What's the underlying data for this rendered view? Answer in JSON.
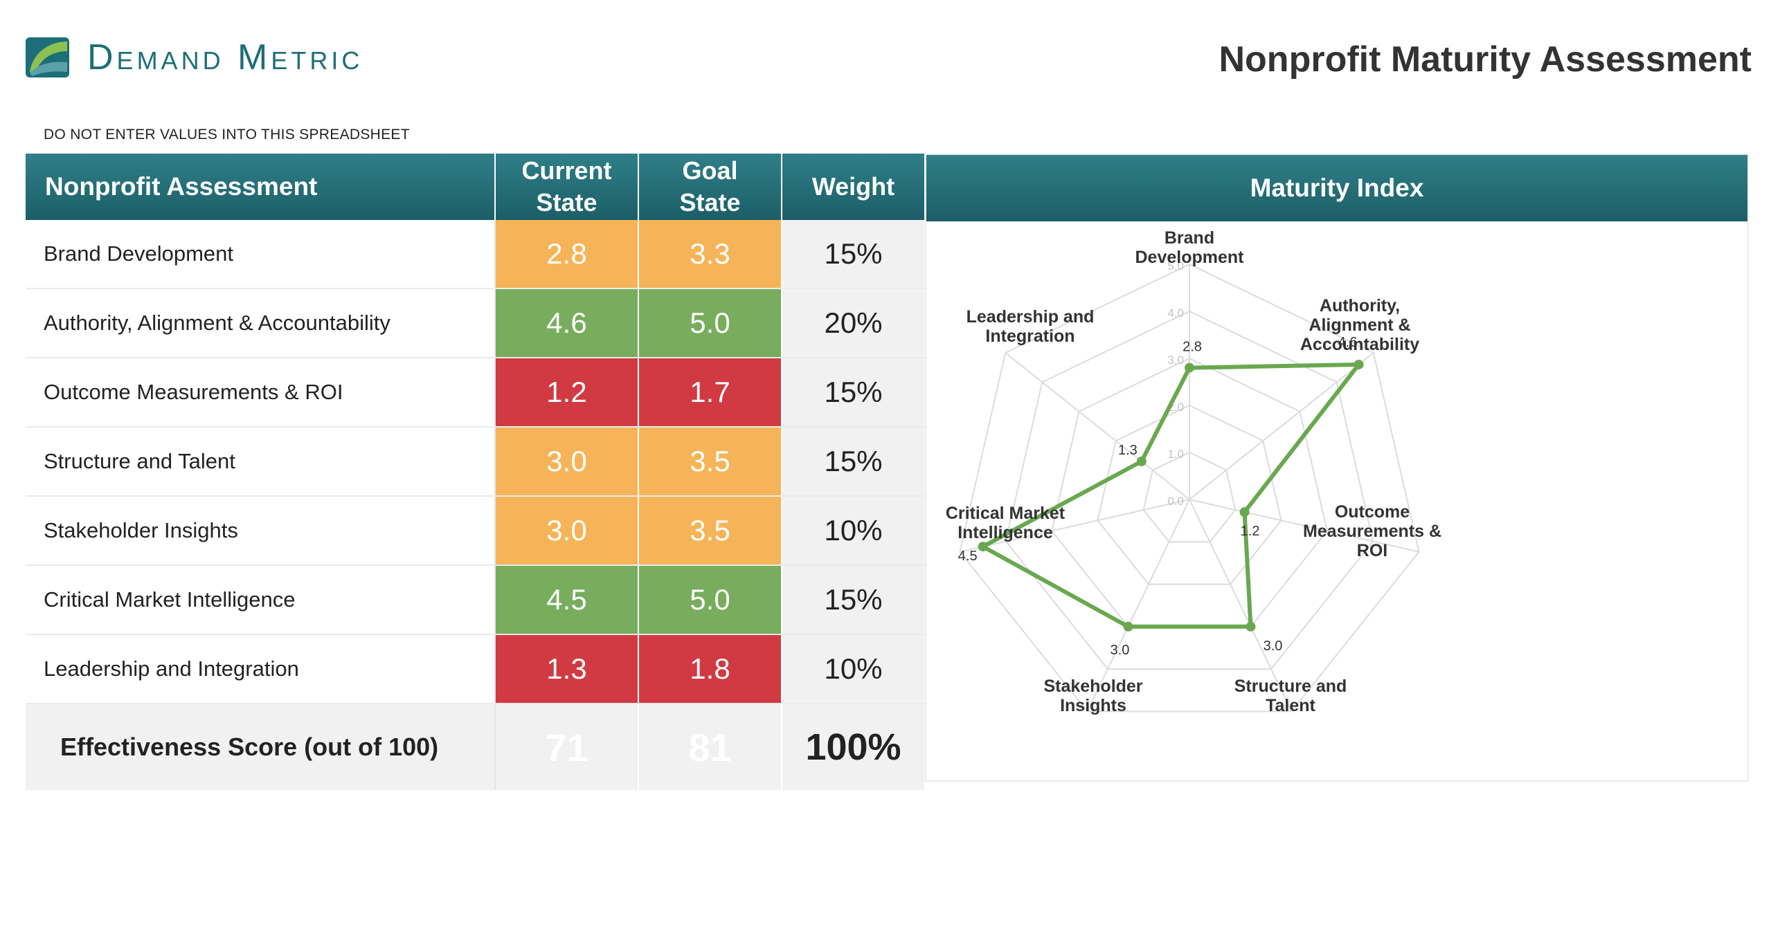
{
  "brand": {
    "name": "Demand Metric",
    "colors": {
      "teal": "#1d6e78",
      "green": "#5a9a3c"
    }
  },
  "title": "Nonprofit Maturity Assessment",
  "notice": "DO NOT ENTER VALUES INTO THIS SPREADSHEET",
  "table": {
    "headers": {
      "name": "Nonprofit Assessment",
      "current_line1": "Current",
      "current_line2": "State",
      "goal_line1": "Goal",
      "goal_line2": "State",
      "weight": "Weight"
    },
    "rows": [
      {
        "name": "Brand Development",
        "current": "2.8",
        "goal": "3.3",
        "weight": "15%",
        "current_color": "#f6b458",
        "goal_color": "#f6b458"
      },
      {
        "name": "Authority, Alignment & Accountability",
        "current": "4.6",
        "goal": "5.0",
        "weight": "20%",
        "current_color": "#77ad5c",
        "goal_color": "#77ad5c"
      },
      {
        "name": "Outcome Measurements & ROI",
        "current": "1.2",
        "goal": "1.7",
        "weight": "15%",
        "current_color": "#d13a43",
        "goal_color": "#d13a43"
      },
      {
        "name": "Structure and Talent",
        "current": "3.0",
        "goal": "3.5",
        "weight": "15%",
        "current_color": "#f6b458",
        "goal_color": "#f6b458"
      },
      {
        "name": "Stakeholder Insights",
        "current": "3.0",
        "goal": "3.5",
        "weight": "10%",
        "current_color": "#f6b458",
        "goal_color": "#f6b458"
      },
      {
        "name": "Critical Market Intelligence",
        "current": "4.5",
        "goal": "5.0",
        "weight": "15%",
        "current_color": "#77ad5c",
        "goal_color": "#77ad5c"
      },
      {
        "name": "Leadership and Integration",
        "current": "1.3",
        "goal": "1.8",
        "weight": "10%",
        "current_color": "#d13a43",
        "goal_color": "#d13a43"
      }
    ],
    "total": {
      "name": "Effectiveness Score (out of 100)",
      "current": "71",
      "goal": "81",
      "weight": "100%"
    }
  },
  "chart_data": {
    "type": "radar",
    "title": "Maturity Index",
    "categories": [
      "Brand Development",
      "Authority, Alignment & Accountability",
      "Outcome Measurements & ROI",
      "Structure and Talent",
      "Stakeholder Insights",
      "Critical Market Intelligence",
      "Leadership and Integration"
    ],
    "values": [
      2.8,
      4.6,
      1.2,
      3.0,
      3.0,
      4.5,
      1.3
    ],
    "value_labels": [
      "2.8",
      "4.6",
      "1.2",
      "3.0",
      "3.0",
      "4.5",
      "1.3"
    ],
    "range": [
      0,
      5
    ],
    "ticks": [
      "0.0",
      "1.0",
      "2.0",
      "3.0",
      "4.0",
      "5.0"
    ],
    "grid": true,
    "series_color": "#6aa84f"
  }
}
